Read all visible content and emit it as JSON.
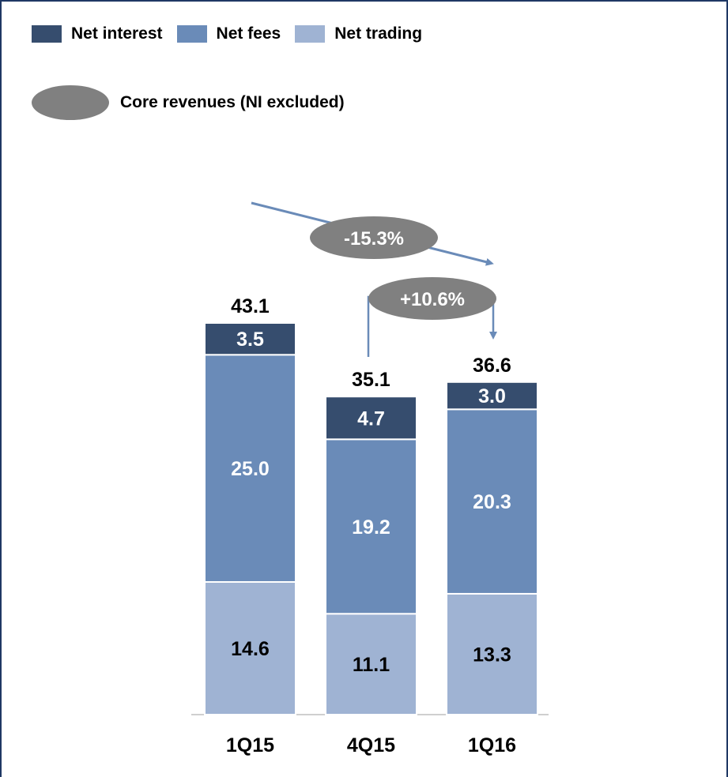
{
  "legend": {
    "items": [
      {
        "label": "Net interest",
        "color": "#364d6e"
      },
      {
        "label": "Net fees",
        "color": "#6a8bb8"
      },
      {
        "label": "Net trading",
        "color": "#9fb3d3"
      }
    ],
    "core": {
      "label": "Core revenues (NI excluded)",
      "color": "#808080"
    }
  },
  "chart_data": {
    "type": "bar",
    "stacked": true,
    "categories": [
      "1Q15",
      "4Q15",
      "1Q16"
    ],
    "series": [
      {
        "name": "Net trading",
        "values": [
          14.6,
          11.1,
          13.3
        ],
        "color": "#9fb3d3",
        "label_color": "#000000"
      },
      {
        "name": "Net fees",
        "values": [
          25.0,
          19.2,
          20.3
        ],
        "color": "#6a8bb8",
        "label_color": "#ffffff"
      },
      {
        "name": "Net interest",
        "values": [
          3.5,
          4.7,
          3.0
        ],
        "color": "#364d6e",
        "label_color": "#ffffff"
      }
    ],
    "totals": [
      43.1,
      35.1,
      36.6
    ],
    "annotations": [
      {
        "text": "-15.3%",
        "from": "1Q15",
        "to": "1Q16"
      },
      {
        "text": "+10.6%",
        "from": "4Q15",
        "to": "1Q16"
      }
    ],
    "ylim": [
      0,
      43.1
    ],
    "grid": false,
    "legend_position": "top-left"
  }
}
